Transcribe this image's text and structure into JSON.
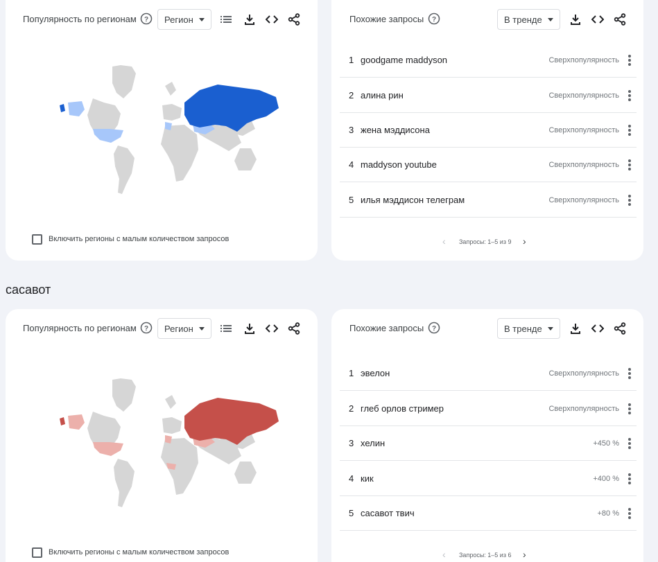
{
  "colors": {
    "blue_strong": "#1a5fd0",
    "blue_light": "#a7c7fa",
    "red_strong": "#c5504a",
    "red_light": "#ecb0ab",
    "land_gray": "#d6d6d6"
  },
  "panels": [
    {
      "region_card": {
        "title": "Популярность по регионам",
        "help_icon": "help-circle-icon",
        "select_value": "Регион",
        "toolbar_icons": [
          "list-icon",
          "download-icon",
          "embed-code-icon",
          "share-icon"
        ],
        "low_volume_checkbox_label": "Включить регионы с малым количеством запросов",
        "low_volume_checked": false,
        "map_highlight_color": "blue"
      },
      "queries_card": {
        "title": "Похожие запросы",
        "select_value": "В тренде",
        "items": [
          {
            "rank": "1",
            "query": "goodgame maddyson",
            "value": "Сверхпопулярность"
          },
          {
            "rank": "2",
            "query": "алина рин",
            "value": "Сверхпопулярность"
          },
          {
            "rank": "3",
            "query": "жена мэддисона",
            "value": "Сверхпопулярность"
          },
          {
            "rank": "4",
            "query": "maddyson youtube",
            "value": "Сверхпопулярность"
          },
          {
            "rank": "5",
            "query": "илья мэддисон телеграм",
            "value": "Сверхпопулярность"
          }
        ],
        "pager_text": "Запросы: 1–5 из 9"
      }
    },
    {
      "section_title": "сасавот",
      "region_card": {
        "title": "Популярность по регионам",
        "help_icon": "help-circle-icon",
        "select_value": "Регион",
        "toolbar_icons": [
          "list-icon",
          "download-icon",
          "embed-code-icon",
          "share-icon"
        ],
        "low_volume_checkbox_label": "Включить регионы с малым количеством запросов",
        "low_volume_checked": false,
        "map_highlight_color": "red"
      },
      "queries_card": {
        "title": "Похожие запросы",
        "select_value": "В тренде",
        "items": [
          {
            "rank": "1",
            "query": "эвелон",
            "value": "Сверхпопулярность"
          },
          {
            "rank": "2",
            "query": "глеб орлов стример",
            "value": "Сверхпопулярность"
          },
          {
            "rank": "3",
            "query": "хелин",
            "value": "+450 %"
          },
          {
            "rank": "4",
            "query": "кик",
            "value": "+400 %"
          },
          {
            "rank": "5",
            "query": "сасавот твич",
            "value": "+80 %"
          }
        ],
        "pager_text": "Запросы: 1–5 из 6"
      }
    }
  ]
}
